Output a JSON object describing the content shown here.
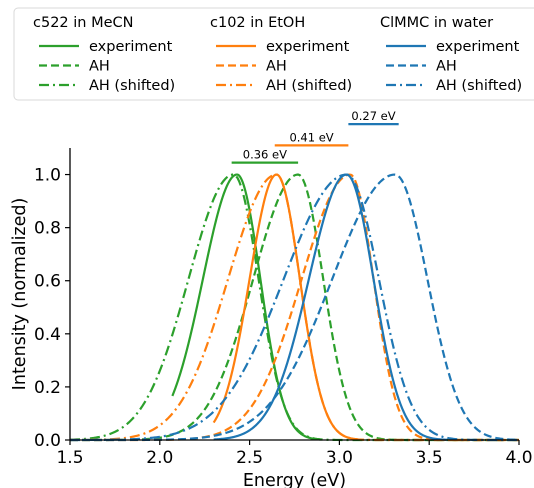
{
  "chart_data": {
    "type": "line",
    "xlabel": "Energy (eV)",
    "ylabel": "Intensity (normalized)",
    "xlim": [
      1.5,
      4.0
    ],
    "ylim": [
      0.0,
      1.1
    ],
    "x_ticks": [
      "1.5",
      "2.0",
      "2.5",
      "3.0",
      "3.5",
      "4.0"
    ],
    "y_ticks": [
      "0.0",
      "0.2",
      "0.4",
      "0.6",
      "0.8",
      "1.0"
    ],
    "grid": false,
    "legend_position": "top",
    "legend_groups": [
      {
        "title": "c522 in MeCN",
        "color": "#2ca02c",
        "entries": [
          "experiment",
          "AH",
          "AH (shifted)"
        ]
      },
      {
        "title": "c102 in EtOH",
        "color": "#ff7f0e",
        "entries": [
          "experiment",
          "AH",
          "AH (shifted)"
        ]
      },
      {
        "title": "ClMMC in water",
        "color": "#1f77b4",
        "entries": [
          "experiment",
          "AH",
          "AH (shifted)"
        ]
      }
    ],
    "shift_annotations": [
      {
        "label": "0.36 eV",
        "from": 2.4,
        "to": 2.77,
        "y": 1.045,
        "color": "#2ca02c"
      },
      {
        "label": "0.41 eV",
        "from": 2.64,
        "to": 3.05,
        "y": 1.11,
        "color": "#ff7f0e"
      },
      {
        "label": "0.27 eV",
        "from": 3.05,
        "to": 3.33,
        "y": 1.19,
        "color": "#1f77b4"
      }
    ],
    "series": [
      {
        "group": 0,
        "style": "solid",
        "color": "#2ca02c",
        "peak": 2.43,
        "sigma_left": 0.19,
        "sigma_right": 0.13,
        "x_start": 2.07,
        "x_end": 2.9
      },
      {
        "group": 0,
        "style": "dashed",
        "color": "#2ca02c",
        "peak": 2.77,
        "sigma_left": 0.25,
        "sigma_right": 0.14,
        "x_start": 1.5,
        "x_end": 4.0
      },
      {
        "group": 0,
        "style": "dashdot",
        "color": "#2ca02c",
        "peak": 2.41,
        "sigma_left": 0.25,
        "sigma_right": 0.14,
        "x_start": 1.5,
        "x_end": 4.0
      },
      {
        "group": 1,
        "style": "solid",
        "color": "#ff7f0e",
        "peak": 2.65,
        "sigma_left": 0.15,
        "sigma_right": 0.13,
        "x_start": 2.3,
        "x_end": 3.1
      },
      {
        "group": 1,
        "style": "dashed",
        "color": "#ff7f0e",
        "peak": 3.06,
        "sigma_left": 0.27,
        "sigma_right": 0.13,
        "x_start": 1.5,
        "x_end": 4.0
      },
      {
        "group": 1,
        "style": "dashdot",
        "color": "#ff7f0e",
        "peak": 2.65,
        "sigma_left": 0.27,
        "sigma_right": 0.13,
        "x_start": 1.5,
        "x_end": 4.0
      },
      {
        "group": 2,
        "style": "solid",
        "color": "#1f77b4",
        "peak": 3.04,
        "sigma_left": 0.21,
        "sigma_right": 0.15,
        "x_start": 2.3,
        "x_end": 3.6
      },
      {
        "group": 2,
        "style": "dashed",
        "color": "#1f77b4",
        "peak": 3.31,
        "sigma_left": 0.35,
        "sigma_right": 0.18,
        "x_start": 1.5,
        "x_end": 4.0
      },
      {
        "group": 2,
        "style": "dashdot",
        "color": "#1f77b4",
        "peak": 3.04,
        "sigma_left": 0.35,
        "sigma_right": 0.18,
        "x_start": 1.5,
        "x_end": 4.0
      }
    ]
  }
}
